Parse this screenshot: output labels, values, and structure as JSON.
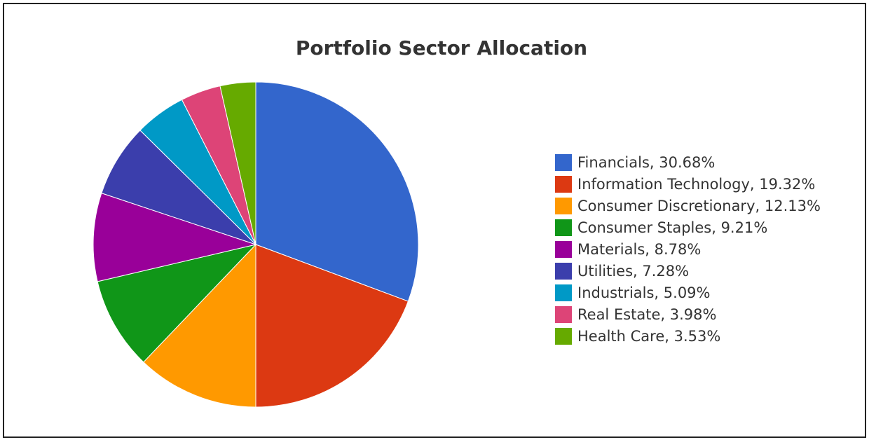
{
  "chart_data": {
    "type": "pie",
    "title": "Portfolio Sector Allocation",
    "legend_position": "right",
    "slices": [
      {
        "label": "Financials",
        "value": 30.68,
        "color": "#3366cc"
      },
      {
        "label": "Information Technology",
        "value": 19.32,
        "color": "#dc3912"
      },
      {
        "label": "Consumer Discretionary",
        "value": 12.13,
        "color": "#ff9900"
      },
      {
        "label": "Consumer Staples",
        "value": 9.21,
        "color": "#109618"
      },
      {
        "label": "Materials",
        "value": 8.78,
        "color": "#990099"
      },
      {
        "label": "Utilities",
        "value": 7.28,
        "color": "#3b3eac"
      },
      {
        "label": "Industrials",
        "value": 5.09,
        "color": "#0099c6"
      },
      {
        "label": "Real Estate",
        "value": 3.98,
        "color": "#dd4477"
      },
      {
        "label": "Health Care",
        "value": 3.53,
        "color": "#66aa00"
      }
    ]
  }
}
